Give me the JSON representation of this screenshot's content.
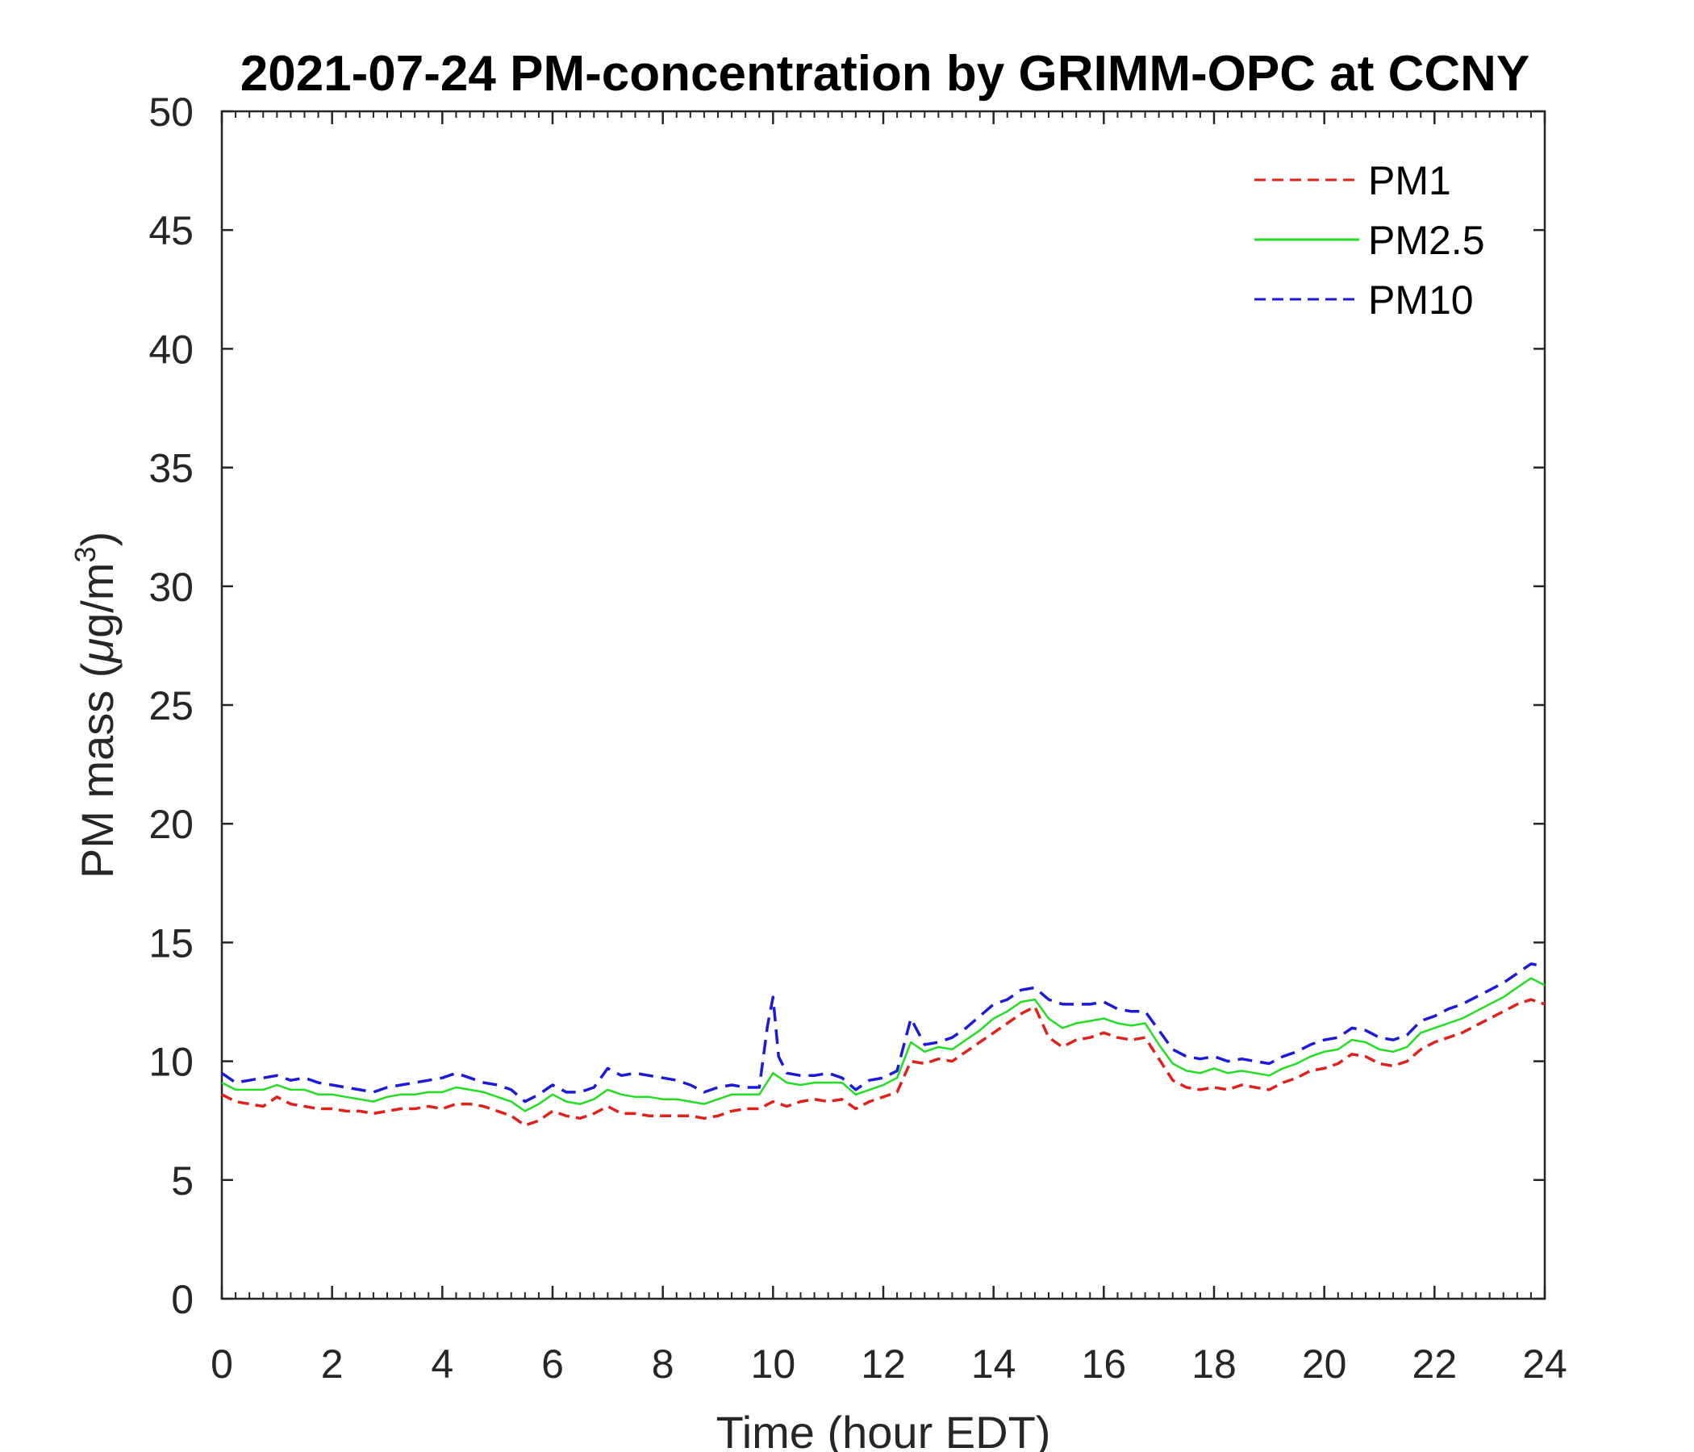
{
  "chart_data": {
    "type": "line",
    "title": "2021-07-24 PM-concentration by GRIMM-OPC at CCNY",
    "xlabel": "Time (hour EDT)",
    "ylabel_main": "PM mass (",
    "ylabel_mu": "μ",
    "ylabel_unit": "g/m",
    "ylabel_sup": "3",
    "ylabel_close": ")",
    "xlim": [
      0,
      24
    ],
    "ylim": [
      0,
      50
    ],
    "xticks": [
      0,
      2,
      4,
      6,
      8,
      10,
      12,
      14,
      16,
      18,
      20,
      22,
      24
    ],
    "yticks": [
      0,
      5,
      10,
      15,
      20,
      25,
      30,
      35,
      40,
      45,
      50
    ],
    "grid": false,
    "legend_position": "top-right",
    "colors": {
      "PM1": "#e0201b",
      "PM2.5": "#22dd22",
      "PM10": "#1a1ad8",
      "axis": "#262626"
    },
    "series": [
      {
        "name": "PM1",
        "style": "dashed",
        "x": [
          0,
          0.25,
          0.5,
          0.75,
          1.0,
          1.25,
          1.5,
          1.75,
          2.0,
          2.25,
          2.5,
          2.75,
          3.0,
          3.25,
          3.5,
          3.75,
          4.0,
          4.25,
          4.5,
          4.75,
          5.0,
          5.25,
          5.5,
          5.75,
          6.0,
          6.25,
          6.5,
          6.75,
          7.0,
          7.25,
          7.5,
          7.75,
          8.0,
          8.25,
          8.5,
          8.75,
          9.0,
          9.25,
          9.5,
          9.75,
          10.0,
          10.25,
          10.5,
          10.75,
          11.0,
          11.25,
          11.5,
          11.75,
          12.0,
          12.25,
          12.5,
          12.75,
          13.0,
          13.25,
          13.5,
          13.75,
          14.0,
          14.25,
          14.5,
          14.75,
          15.0,
          15.25,
          15.5,
          15.75,
          16.0,
          16.25,
          16.5,
          16.75,
          17.0,
          17.25,
          17.5,
          17.75,
          18.0,
          18.25,
          18.5,
          18.75,
          19.0,
          19.25,
          19.5,
          19.75,
          20.0,
          20.25,
          20.5,
          20.75,
          21.0,
          21.25,
          21.5,
          21.75,
          22.0,
          22.25,
          22.5,
          22.75,
          23.0,
          23.25,
          23.5,
          23.75,
          24.0
        ],
        "values": [
          8.6,
          8.3,
          8.2,
          8.1,
          8.5,
          8.2,
          8.1,
          8.0,
          8.0,
          7.9,
          7.9,
          7.8,
          7.9,
          8.0,
          8.0,
          8.1,
          8.0,
          8.2,
          8.2,
          8.1,
          7.9,
          7.7,
          7.3,
          7.5,
          7.9,
          7.7,
          7.6,
          7.8,
          8.1,
          7.8,
          7.8,
          7.7,
          7.7,
          7.7,
          7.7,
          7.6,
          7.7,
          7.9,
          8.0,
          8.0,
          8.3,
          8.1,
          8.3,
          8.4,
          8.3,
          8.4,
          8.0,
          8.3,
          8.5,
          8.7,
          10.0,
          9.9,
          10.1,
          10.0,
          10.4,
          10.8,
          11.2,
          11.6,
          12.0,
          12.3,
          11.0,
          10.6,
          10.9,
          11.0,
          11.2,
          11.0,
          10.9,
          11.0,
          10.1,
          9.2,
          8.9,
          8.8,
          8.9,
          8.8,
          9.0,
          8.9,
          8.8,
          9.1,
          9.3,
          9.6,
          9.7,
          9.9,
          10.3,
          10.2,
          9.9,
          9.8,
          10.0,
          10.5,
          10.8,
          11.0,
          11.2,
          11.5,
          11.8,
          12.1,
          12.4,
          12.6,
          12.4
        ]
      },
      {
        "name": "PM2.5",
        "style": "solid",
        "x": [
          0,
          0.25,
          0.5,
          0.75,
          1.0,
          1.25,
          1.5,
          1.75,
          2.0,
          2.25,
          2.5,
          2.75,
          3.0,
          3.25,
          3.5,
          3.75,
          4.0,
          4.25,
          4.5,
          4.75,
          5.0,
          5.25,
          5.5,
          5.75,
          6.0,
          6.25,
          6.5,
          6.75,
          7.0,
          7.25,
          7.5,
          7.75,
          8.0,
          8.25,
          8.5,
          8.75,
          9.0,
          9.25,
          9.5,
          9.75,
          10.0,
          10.25,
          10.5,
          10.75,
          11.0,
          11.25,
          11.5,
          11.75,
          12.0,
          12.25,
          12.5,
          12.75,
          13.0,
          13.25,
          13.5,
          13.75,
          14.0,
          14.25,
          14.5,
          14.75,
          15.0,
          15.25,
          15.5,
          15.75,
          16.0,
          16.25,
          16.5,
          16.75,
          17.0,
          17.25,
          17.5,
          17.75,
          18.0,
          18.25,
          18.5,
          18.75,
          19.0,
          19.25,
          19.5,
          19.75,
          20.0,
          20.25,
          20.5,
          20.75,
          21.0,
          21.25,
          21.5,
          21.75,
          22.0,
          22.25,
          22.5,
          22.75,
          23.0,
          23.25,
          23.5,
          23.75,
          24.0
        ],
        "values": [
          9.1,
          8.8,
          8.8,
          8.8,
          9.0,
          8.8,
          8.8,
          8.6,
          8.6,
          8.5,
          8.4,
          8.3,
          8.5,
          8.6,
          8.6,
          8.7,
          8.7,
          8.9,
          8.8,
          8.7,
          8.5,
          8.3,
          7.9,
          8.2,
          8.6,
          8.3,
          8.2,
          8.4,
          8.8,
          8.6,
          8.5,
          8.5,
          8.4,
          8.4,
          8.3,
          8.2,
          8.4,
          8.6,
          8.6,
          8.6,
          9.5,
          9.1,
          9.0,
          9.1,
          9.1,
          9.1,
          8.6,
          8.8,
          9.0,
          9.3,
          10.8,
          10.4,
          10.6,
          10.5,
          10.9,
          11.3,
          11.8,
          12.1,
          12.5,
          12.6,
          11.8,
          11.4,
          11.6,
          11.7,
          11.8,
          11.6,
          11.5,
          11.6,
          10.7,
          9.9,
          9.6,
          9.5,
          9.7,
          9.5,
          9.6,
          9.5,
          9.4,
          9.7,
          9.9,
          10.2,
          10.4,
          10.5,
          10.9,
          10.8,
          10.5,
          10.4,
          10.6,
          11.2,
          11.4,
          11.6,
          11.8,
          12.1,
          12.4,
          12.7,
          13.1,
          13.5,
          13.2
        ]
      },
      {
        "name": "PM10",
        "style": "dashed",
        "x": [
          0,
          0.25,
          0.5,
          0.75,
          1.0,
          1.25,
          1.5,
          1.75,
          2.0,
          2.25,
          2.5,
          2.75,
          3.0,
          3.25,
          3.5,
          3.75,
          4.0,
          4.25,
          4.5,
          4.75,
          5.0,
          5.25,
          5.5,
          5.75,
          6.0,
          6.25,
          6.5,
          6.75,
          7.0,
          7.25,
          7.5,
          7.75,
          8.0,
          8.25,
          8.5,
          8.75,
          9.0,
          9.25,
          9.5,
          9.75,
          9.9,
          10.0,
          10.1,
          10.25,
          10.5,
          10.75,
          11.0,
          11.25,
          11.5,
          11.75,
          12.0,
          12.25,
          12.5,
          12.75,
          13.0,
          13.25,
          13.5,
          13.75,
          14.0,
          14.25,
          14.5,
          14.75,
          15.0,
          15.25,
          15.5,
          15.75,
          16.0,
          16.25,
          16.5,
          16.75,
          17.0,
          17.25,
          17.5,
          17.75,
          18.0,
          18.25,
          18.5,
          18.75,
          19.0,
          19.25,
          19.5,
          19.75,
          20.0,
          20.25,
          20.5,
          20.75,
          21.0,
          21.25,
          21.5,
          21.75,
          22.0,
          22.25,
          22.5,
          22.75,
          23.0,
          23.25,
          23.5,
          23.75,
          24.0
        ],
        "values": [
          9.5,
          9.1,
          9.2,
          9.3,
          9.4,
          9.2,
          9.3,
          9.1,
          9.0,
          8.9,
          8.8,
          8.7,
          8.9,
          9.0,
          9.1,
          9.2,
          9.3,
          9.5,
          9.3,
          9.1,
          9.0,
          8.8,
          8.3,
          8.6,
          9.0,
          8.7,
          8.7,
          8.9,
          9.7,
          9.4,
          9.5,
          9.4,
          9.3,
          9.2,
          9.0,
          8.7,
          8.9,
          9.0,
          8.9,
          8.9,
          11.5,
          12.7,
          10.2,
          9.5,
          9.4,
          9.4,
          9.5,
          9.3,
          8.8,
          9.2,
          9.3,
          9.6,
          11.8,
          10.7,
          10.8,
          11.0,
          11.4,
          11.9,
          12.4,
          12.6,
          13.0,
          13.1,
          12.6,
          12.4,
          12.4,
          12.4,
          12.5,
          12.2,
          12.1,
          12.1,
          11.3,
          10.5,
          10.2,
          10.1,
          10.2,
          10.0,
          10.1,
          10.0,
          9.9,
          10.2,
          10.4,
          10.7,
          10.9,
          11.0,
          11.4,
          11.3,
          11.0,
          10.9,
          11.1,
          11.7,
          11.9,
          12.2,
          12.4,
          12.7,
          13.0,
          13.3,
          13.7,
          14.1,
          14.0
        ]
      }
    ]
  }
}
